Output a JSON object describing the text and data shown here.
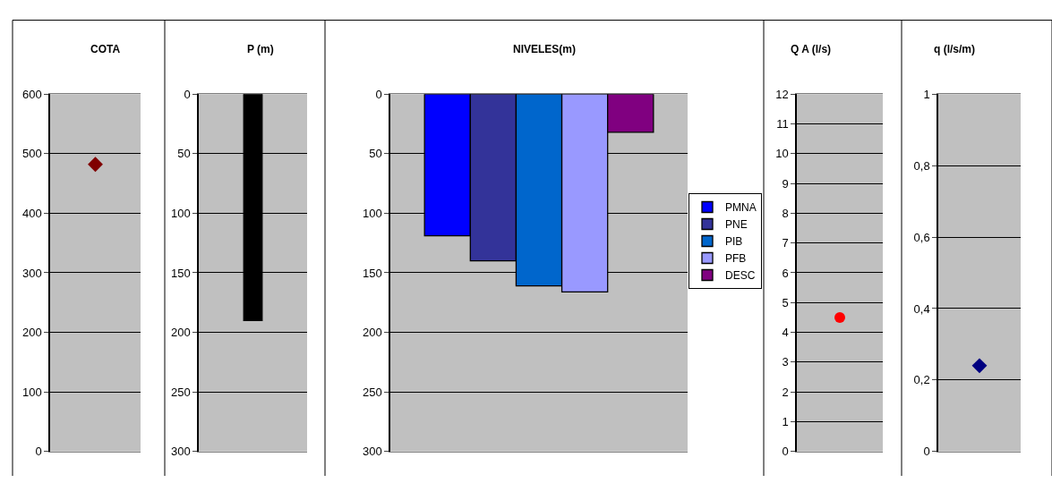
{
  "chart_data": [
    {
      "type": "scatter",
      "title": "COTA",
      "categories": [
        null
      ],
      "values": [
        482
      ],
      "color": "#800000",
      "marker": "diamond",
      "ylim": [
        0,
        600
      ],
      "yticks": [
        0,
        100,
        200,
        300,
        400,
        500,
        600
      ],
      "grid": "y",
      "legend": false
    },
    {
      "type": "bar",
      "title": "P (m)",
      "categories": [
        null
      ],
      "values": [
        190
      ],
      "color": "#000000",
      "ylim": [
        300,
        0
      ],
      "yticks": [
        0,
        50,
        100,
        150,
        200,
        250,
        300
      ],
      "grid": "y",
      "legend": false
    },
    {
      "type": "bar",
      "title": "NIVELES(m)",
      "categories": [
        null
      ],
      "series": [
        {
          "name": "PMNA",
          "color": "#0000ff",
          "values": [
            119
          ]
        },
        {
          "name": "PNE",
          "color": "#333399",
          "values": [
            140
          ]
        },
        {
          "name": "PIB",
          "color": "#0066cc",
          "values": [
            161
          ]
        },
        {
          "name": "PFB",
          "color": "#9999ff",
          "values": [
            166
          ]
        },
        {
          "name": "DESC",
          "color": "#800080",
          "values": [
            32
          ]
        }
      ],
      "ylim": [
        300,
        0
      ],
      "yticks": [
        0,
        50,
        100,
        150,
        200,
        250,
        300
      ],
      "grid": "y",
      "legend": "right"
    },
    {
      "type": "scatter",
      "title": "Q A (l/s)",
      "categories": [
        null
      ],
      "values": [
        4.5
      ],
      "color": "#ff0000",
      "marker": "circle",
      "ylim": [
        0,
        12
      ],
      "yticks": [
        0,
        1,
        2,
        3,
        4,
        5,
        6,
        7,
        8,
        9,
        10,
        11,
        12
      ],
      "grid": "y",
      "legend": false
    },
    {
      "type": "scatter",
      "title": "q (l/s/m)",
      "categories": [
        null
      ],
      "values": [
        0.24
      ],
      "color": "#000080",
      "marker": "diamond",
      "ylim": [
        0,
        1
      ],
      "yticks": [
        0,
        {
          "value": 0.2,
          "label": "0,2"
        },
        {
          "value": 0.4,
          "label": "0,4"
        },
        {
          "value": 0.6,
          "label": "0,6"
        },
        {
          "value": 0.8,
          "label": "0,8"
        },
        1
      ],
      "grid": "y",
      "legend": false
    }
  ]
}
